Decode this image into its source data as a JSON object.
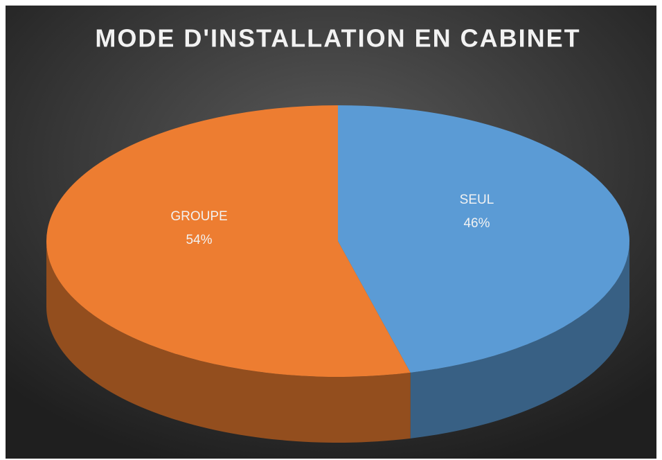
{
  "chart_data": {
    "type": "pie",
    "title": "MODE D'INSTALLATION EN CABINET",
    "categories": [
      "SEUL",
      "GROUPE"
    ],
    "values": [
      46,
      54
    ],
    "value_labels": [
      "46%",
      "54%"
    ],
    "colors": [
      "#5b9bd5",
      "#ed7d31"
    ]
  }
}
